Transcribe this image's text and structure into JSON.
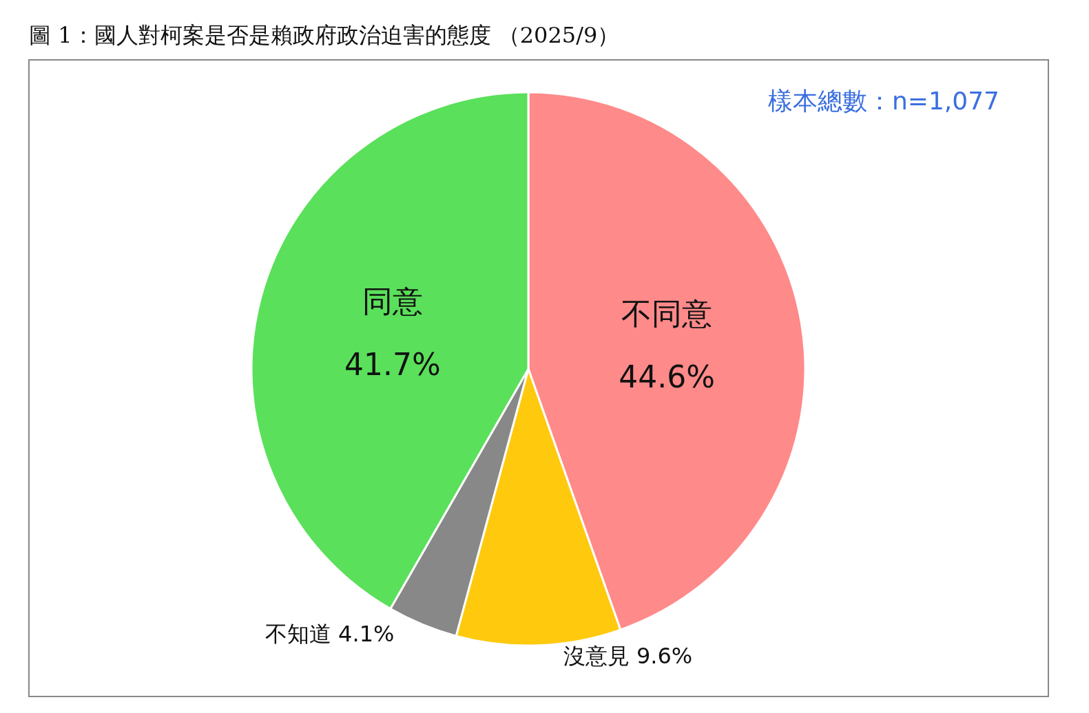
{
  "chart_data": {
    "type": "pie",
    "title": "圖 1：國人對柯案是否是賴政府政治迫害的態度 （2025/9）",
    "categories": [
      "不同意",
      "沒意見",
      "不知道",
      "同意"
    ],
    "values": [
      44.6,
      9.6,
      4.1,
      41.7
    ],
    "colors": [
      "#ff8a8a",
      "#ffc90e",
      "#888888",
      "#5ae05a"
    ],
    "annotations": [
      "樣本總數：n=1,077"
    ],
    "value_labels": [
      "44.6%",
      "9.6%",
      "4.1%",
      "41.7%"
    ],
    "legend": false
  }
}
